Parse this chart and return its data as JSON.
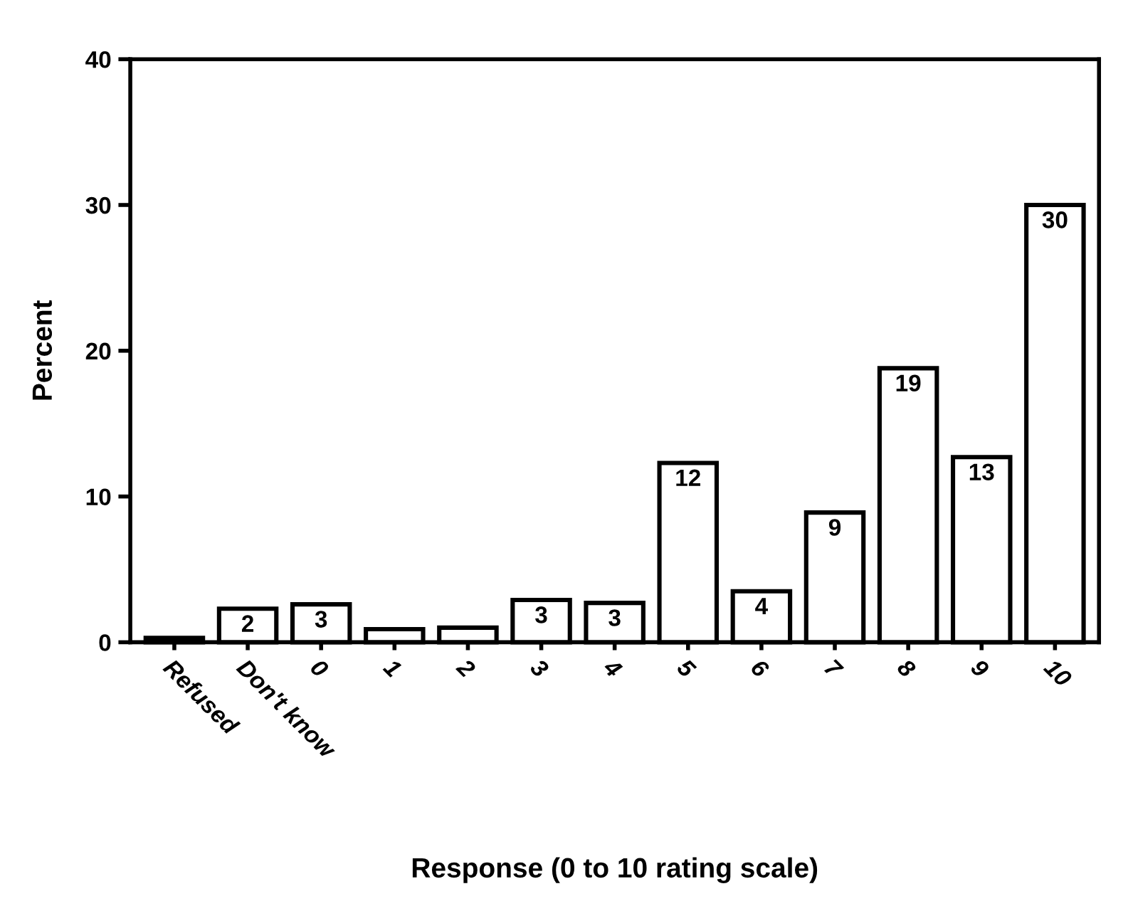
{
  "chart_data": {
    "type": "bar",
    "xlabel": "Response (0 to 10 rating scale)",
    "ylabel": "Percent",
    "categories": [
      "Refused",
      "Don't know",
      "0",
      "1",
      "2",
      "3",
      "4",
      "5",
      "6",
      "7",
      "8",
      "9",
      "10"
    ],
    "values": [
      0.3,
      2.3,
      2.6,
      0.9,
      1.0,
      2.9,
      2.7,
      12.3,
      3.5,
      8.9,
      18.8,
      12.7,
      30.0
    ],
    "value_labels": [
      null,
      "2",
      "3",
      null,
      null,
      "3",
      "3",
      "12",
      "4",
      "9",
      "19",
      "13",
      "30"
    ],
    "color": "#ffffff",
    "ylim": [
      0,
      40
    ],
    "yticks": [
      0,
      10,
      20,
      30,
      40
    ],
    "grid": false,
    "legend": false
  }
}
